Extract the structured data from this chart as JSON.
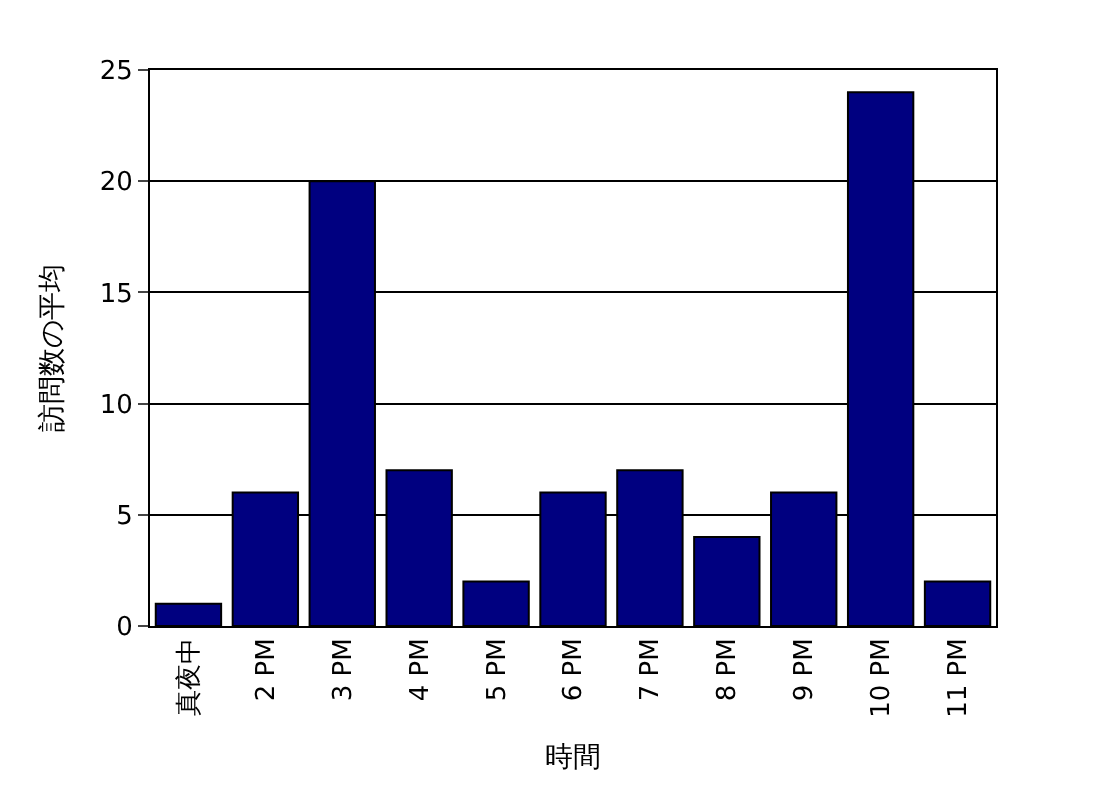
{
  "chart_data": {
    "type": "bar",
    "xlabel": "時間",
    "ylabel": "訪問数の平均",
    "categories": [
      "真夜中",
      "2 PM",
      "3 PM",
      "4 PM",
      "5 PM",
      "6 PM",
      "7 PM",
      "8 PM",
      "9 PM",
      "10 PM",
      "11 PM"
    ],
    "values": [
      1,
      6,
      20,
      7,
      2,
      6,
      7,
      4,
      6,
      24,
      2
    ],
    "color": "#000080",
    "ylim": [
      0,
      25
    ],
    "yticks": [
      0,
      5,
      10,
      15,
      20,
      25
    ],
    "grid": "y"
  }
}
